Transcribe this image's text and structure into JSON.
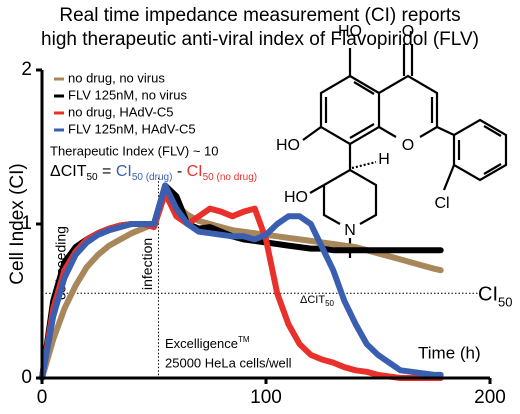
{
  "chart_data": {
    "type": "line",
    "title": [
      "Real time impedance measurement (CI) reports",
      "high therapeutic anti-viral index of Flavopiridol (FLV)"
    ],
    "y_label": "Cell Index (CI)",
    "x_label": "Time (h)",
    "xlim": [
      0,
      200
    ],
    "xticks": [
      0,
      100,
      200
    ],
    "ylim": [
      0,
      2
    ],
    "yticks": [
      0,
      1,
      2
    ],
    "x": [
      0,
      5,
      10,
      15,
      20,
      25,
      30,
      35,
      40,
      45,
      50,
      55,
      60,
      65,
      70,
      75,
      80,
      85,
      90,
      95,
      100,
      105,
      110,
      115,
      120,
      125,
      130,
      135,
      140,
      145,
      150,
      155,
      160,
      165,
      170,
      175,
      178
    ],
    "series": [
      {
        "name": "no drug, no virus",
        "color": "#a8875a",
        "values": [
          0,
          0.25,
          0.45,
          0.6,
          0.72,
          0.8,
          0.86,
          0.9,
          0.94,
          0.97,
          1.0,
          1.22,
          1.12,
          1.06,
          1.02,
          1.0,
          0.98,
          0.96,
          0.95,
          0.94,
          0.93,
          0.92,
          0.91,
          0.9,
          0.89,
          0.88,
          0.87,
          0.86,
          0.85,
          0.83,
          0.81,
          0.79,
          0.77,
          0.75,
          0.73,
          0.71,
          0.7
        ]
      },
      {
        "name": "FLV 125nM, no virus",
        "color": "#000000",
        "values": [
          0,
          0.5,
          0.75,
          0.85,
          0.9,
          0.94,
          0.97,
          0.99,
          1.0,
          1.0,
          1.0,
          1.25,
          1.18,
          1.0,
          0.97,
          0.98,
          0.95,
          0.92,
          0.9,
          0.89,
          0.88,
          0.87,
          0.86,
          0.85,
          0.84,
          0.84,
          0.83,
          0.83,
          0.83,
          0.83,
          0.83,
          0.83,
          0.83,
          0.83,
          0.83,
          0.83,
          0.83
        ]
      },
      {
        "name": "no drug, HAdV-C5",
        "color": "#e8312a",
        "values": [
          0,
          0.45,
          0.7,
          0.82,
          0.9,
          0.94,
          0.97,
          0.99,
          1.0,
          1.0,
          0.98,
          1.2,
          1.05,
          1.0,
          1.05,
          1.1,
          1.08,
          1.05,
          1.08,
          1.1,
          0.9,
          0.55,
          0.35,
          0.22,
          0.15,
          0.12,
          0.1,
          0.07,
          0.05,
          0.04,
          0.02,
          0.01,
          0,
          0,
          0,
          0,
          0
        ]
      },
      {
        "name": "FLV 125nM, HAdV-C5",
        "color": "#3a5fb0",
        "values": [
          0,
          0.4,
          0.65,
          0.8,
          0.88,
          0.93,
          0.96,
          0.98,
          1.0,
          1.0,
          1.0,
          1.25,
          1.1,
          1.0,
          0.95,
          0.94,
          0.93,
          0.92,
          0.92,
          0.9,
          0.93,
          1.0,
          1.05,
          1.05,
          1.0,
          0.85,
          0.7,
          0.5,
          0.35,
          0.22,
          0.15,
          0.1,
          0.05,
          0.04,
          0.03,
          0.02,
          0.02
        ]
      }
    ],
    "reference_line": {
      "value": 0.55,
      "label": "CI",
      "subscript": "50"
    },
    "infection_line": {
      "value": 52,
      "label": "infection"
    },
    "annotations": {
      "seeding": "cell seeding",
      "delta": "ΔCIT",
      "delta_sub": "50",
      "instrument": "Excelligence",
      "instrument_sup": "TM",
      "cells": "25000 HeLa cells/well",
      "index": "Therapeutic Index (FLV) ~ 10"
    },
    "formula": {
      "lhs": "ΔCIT",
      "lhs_sub": "50",
      "eq": " = ",
      "a": "CI",
      "a_sub": "50 (drug)",
      "minus": " - ",
      "b": "CI",
      "b_sub": "50 (no drug)"
    }
  },
  "structure": {
    "atoms": [
      "HO",
      "O",
      "HO",
      "O",
      "HO",
      "H",
      "Cl",
      "N"
    ]
  }
}
